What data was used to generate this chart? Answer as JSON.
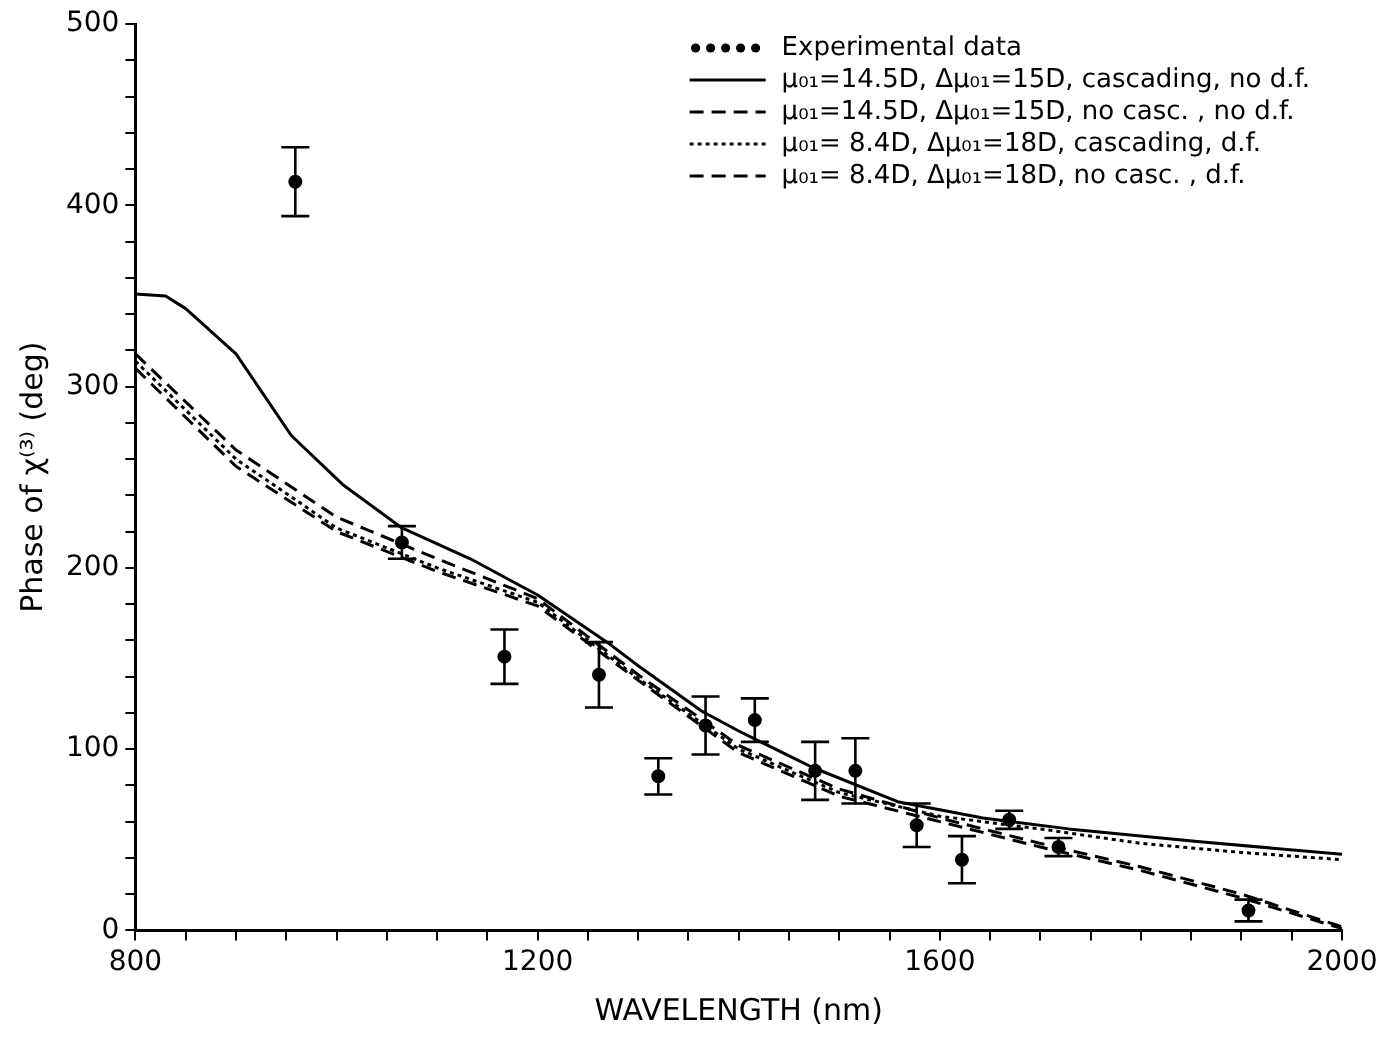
{
  "chart_data": {
    "type": "line",
    "xlabel": "WAVELENGTH (nm)",
    "ylabel": "Phase of χ⁽³⁾ (deg)",
    "xlim": [
      800,
      2000
    ],
    "ylim": [
      0,
      500
    ],
    "xticks": [
      800,
      {
        "value": 850,
        "label": null
      },
      {
        "value": 900,
        "label": null
      },
      {
        "value": 950,
        "label": null
      },
      {
        "value": 1000,
        "label": null
      },
      {
        "value": 1050,
        "label": null
      },
      {
        "value": 1100,
        "label": null
      },
      {
        "value": 1150,
        "label": null
      },
      1200,
      {
        "value": 1250,
        "label": null
      },
      {
        "value": 1300,
        "label": null
      },
      {
        "value": 1350,
        "label": null
      },
      {
        "value": 1400,
        "label": null
      },
      {
        "value": 1450,
        "label": null
      },
      {
        "value": 1500,
        "label": null
      },
      {
        "value": 1550,
        "label": null
      },
      1600,
      {
        "value": 1650,
        "label": null
      },
      {
        "value": 1700,
        "label": null
      },
      {
        "value": 1750,
        "label": null
      },
      {
        "value": 1800,
        "label": null
      },
      {
        "value": 1850,
        "label": null
      },
      {
        "value": 1900,
        "label": null
      },
      {
        "value": 1950,
        "label": null
      },
      2000
    ],
    "yticks": [
      0,
      {
        "value": 20,
        "label": null
      },
      {
        "value": 40,
        "label": null
      },
      {
        "value": 60,
        "label": null
      },
      {
        "value": 80,
        "label": null
      },
      100,
      {
        "value": 120,
        "label": null
      },
      {
        "value": 140,
        "label": null
      },
      {
        "value": 160,
        "label": null
      },
      {
        "value": 180,
        "label": null
      },
      200,
      {
        "value": 220,
        "label": null
      },
      {
        "value": 240,
        "label": null
      },
      {
        "value": 260,
        "label": null
      },
      {
        "value": 280,
        "label": null
      },
      300,
      {
        "value": 320,
        "label": null
      },
      {
        "value": 340,
        "label": null
      },
      {
        "value": 360,
        "label": null
      },
      {
        "value": 380,
        "label": null
      },
      400,
      {
        "value": 420,
        "label": null
      },
      {
        "value": 440,
        "label": null
      },
      {
        "value": 460,
        "label": null
      },
      {
        "value": 480,
        "label": null
      },
      500
    ],
    "grid": false,
    "legend": "top right",
    "series": [
      {
        "name": "Experimental data",
        "type": "scatter",
        "marker": "circle",
        "color": "#000000",
        "x": [
          959,
          1065,
          1167,
          1261,
          1320,
          1367,
          1416,
          1476,
          1516,
          1577,
          1622,
          1669,
          1718,
          1907
        ],
        "values": [
          413,
          214,
          151,
          141,
          85,
          113,
          116,
          88,
          88,
          58,
          39,
          61,
          46,
          11
        ],
        "errors": [
          19,
          9,
          15,
          18,
          10,
          16,
          12,
          16,
          18,
          12,
          13,
          5,
          5,
          6
        ]
      },
      {
        "name": "μ₀₁=14.5D, Δμ₀₁=15D, cascading, no d.f.",
        "line_style": "solid",
        "color": "#000000",
        "x": [
          800,
          830,
          850,
          900,
          955,
          1006,
          1065,
          1133,
          1200,
          1269,
          1300,
          1363,
          1400,
          1473,
          1558,
          1643,
          1728,
          1856,
          2000
        ],
        "values": [
          351,
          350,
          343,
          318,
          273,
          246,
          222,
          205,
          185,
          159,
          146,
          121,
          110,
          90,
          71,
          62,
          56,
          49,
          42
        ]
      },
      {
        "name": "μ₀₁=14.5D, Δμ₀₁=15D, no casc. , no d.f.",
        "line_style": "dashed",
        "color": "#000000",
        "x": [
          800,
          900,
          1000,
          1100,
          1200,
          1300,
          1400,
          1500,
          1600,
          1700,
          1800,
          1900,
          2000
        ],
        "values": [
          318,
          265,
          228,
          205,
          183,
          141,
          102,
          78,
          62,
          48,
          35,
          20,
          2
        ]
      },
      {
        "name": "μ₀₁= 8.4D, Δμ₀₁=18D, cascading, d.f.",
        "line_style": "dotted",
        "color": "#000000",
        "x": [
          800,
          900,
          1000,
          1100,
          1200,
          1300,
          1400,
          1500,
          1600,
          1700,
          1800,
          1900,
          2000
        ],
        "values": [
          314,
          260,
          222,
          200,
          181,
          139,
          100,
          76,
          63,
          56,
          48,
          43,
          39
        ]
      },
      {
        "name": "μ₀₁= 8.4D, Δμ₀₁=18D, no casc. , d.f.",
        "line_style": "dashed",
        "color": "#000000",
        "x": [
          800,
          900,
          1000,
          1100,
          1200,
          1300,
          1400,
          1500,
          1600,
          1700,
          1800,
          1900,
          2000
        ],
        "values": [
          310,
          256,
          220,
          198,
          179,
          138,
          98,
          74,
          60,
          46,
          33,
          18,
          1
        ]
      }
    ]
  }
}
